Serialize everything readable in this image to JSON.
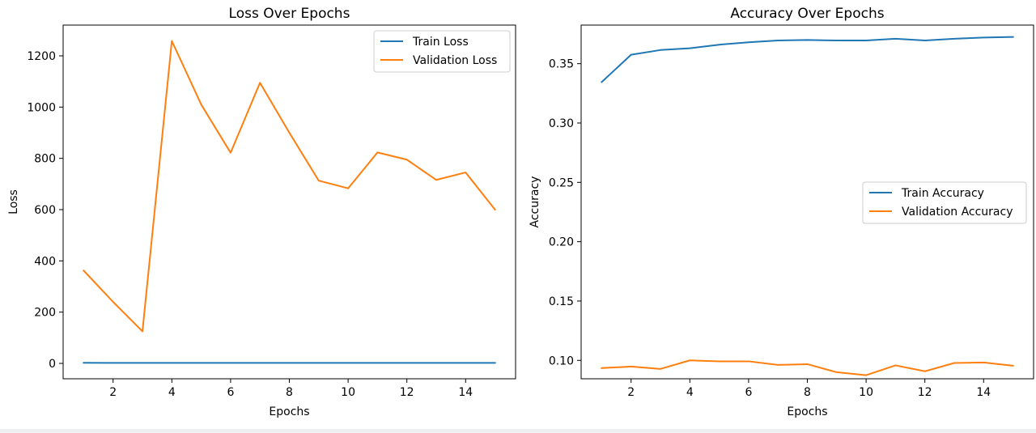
{
  "chart_data": [
    {
      "type": "line",
      "title": "Loss Over Epochs",
      "xlabel": "Epochs",
      "ylabel": "Loss",
      "x": [
        1,
        2,
        3,
        4,
        5,
        6,
        7,
        8,
        9,
        10,
        11,
        12,
        13,
        14,
        15
      ],
      "xlim": [
        0.3,
        15.7
      ],
      "ylim": [
        -60,
        1320
      ],
      "xticks": [
        2,
        4,
        6,
        8,
        10,
        12,
        14
      ],
      "yticks": [
        0,
        200,
        400,
        600,
        800,
        1000,
        1200
      ],
      "grid": false,
      "legend_position": "upper right",
      "series": [
        {
          "name": "Train Loss",
          "color": "#1f77b4",
          "values": [
            2.2,
            2.1,
            2.0,
            2.0,
            1.9,
            1.9,
            1.9,
            1.8,
            1.8,
            1.8,
            1.8,
            1.8,
            1.8,
            1.8,
            1.8
          ]
        },
        {
          "name": "Validation Loss",
          "color": "#ff7f0e",
          "values": [
            362,
            240,
            125,
            1258,
            1010,
            822,
            1095,
            900,
            713,
            683,
            823,
            795,
            716,
            745,
            600
          ]
        }
      ]
    },
    {
      "type": "line",
      "title": "Accuracy Over Epochs",
      "xlabel": "Epochs",
      "ylabel": "Accuracy",
      "x": [
        1,
        2,
        3,
        4,
        5,
        6,
        7,
        8,
        9,
        10,
        11,
        12,
        13,
        14,
        15
      ],
      "xlim": [
        0.3,
        15.7
      ],
      "ylim": [
        0.0845,
        0.3825
      ],
      "xticks": [
        2,
        4,
        6,
        8,
        10,
        12,
        14
      ],
      "yticks": [
        0.1,
        0.15,
        0.2,
        0.25,
        0.3,
        0.35
      ],
      "ytick_labels": [
        "0.10",
        "0.15",
        "0.20",
        "0.25",
        "0.30",
        "0.35"
      ],
      "grid": false,
      "legend_position": "center right",
      "series": [
        {
          "name": "Train Accuracy",
          "color": "#1f77b4",
          "values": [
            0.3345,
            0.3575,
            0.3615,
            0.363,
            0.366,
            0.368,
            0.3695,
            0.37,
            0.3695,
            0.3695,
            0.371,
            0.3695,
            0.371,
            0.372,
            0.3725
          ]
        },
        {
          "name": "Validation Accuracy",
          "color": "#ff7f0e",
          "values": [
            0.0935,
            0.0948,
            0.0928,
            0.1,
            0.0992,
            0.0992,
            0.0962,
            0.0968,
            0.09,
            0.0875,
            0.0958,
            0.0908,
            0.0978,
            0.0982,
            0.0955
          ]
        }
      ]
    }
  ]
}
